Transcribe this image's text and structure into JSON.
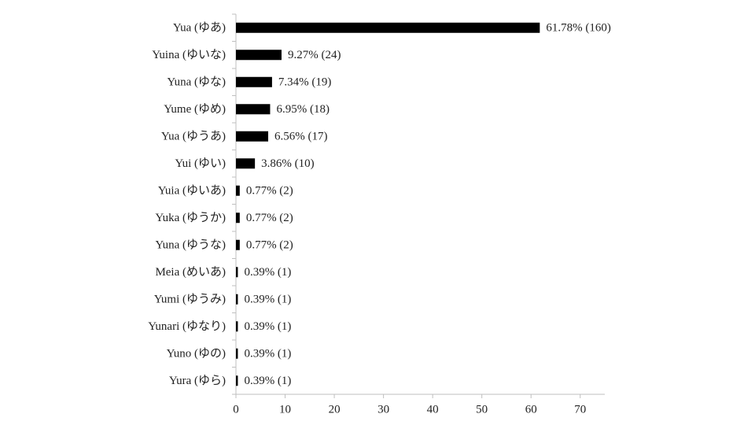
{
  "chart_data": {
    "type": "bar",
    "orientation": "horizontal",
    "categories": [
      "Yua (ゆあ)",
      "Yuina (ゆいな)",
      "Yuna (ゆな)",
      "Yume (ゆめ)",
      "Yua (ゆうあ)",
      "Yui (ゆい)",
      "Yuia (ゆいあ)",
      "Yuka (ゆうか)",
      "Yuna (ゆうな)",
      "Meia (めいあ)",
      "Yumi (ゆうみ)",
      "Yunari (ゆなり)",
      "Yuno (ゆの)",
      "Yura (ゆら)"
    ],
    "values": [
      61.78,
      9.27,
      7.34,
      6.95,
      6.56,
      3.86,
      0.77,
      0.77,
      0.77,
      0.39,
      0.39,
      0.39,
      0.39,
      0.39
    ],
    "value_labels": [
      "61.78% (160)",
      "9.27% (24)",
      "7.34% (19)",
      "6.95% (18)",
      "6.56% (17)",
      "3.86% (10)",
      "0.77% (2)",
      "0.77% (2)",
      "0.77% (2)",
      "0.39% (1)",
      "0.39% (1)",
      "0.39% (1)",
      "0.39% (1)",
      "0.39% (1)"
    ],
    "color": "#000000",
    "xlim": [
      0,
      75
    ],
    "xticks": [
      0,
      10,
      20,
      30,
      40,
      50,
      60,
      70
    ]
  }
}
